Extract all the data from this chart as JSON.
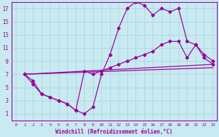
{
  "xlabel": "Windchill (Refroidissement éolien,°C)",
  "background_color": "#c8eaf0",
  "grid_color": "#b0d8e0",
  "line_color": "#990099",
  "xlim": [
    -0.5,
    23.5
  ],
  "ylim": [
    0,
    18
  ],
  "xticks": [
    0,
    1,
    2,
    3,
    4,
    5,
    6,
    7,
    8,
    9,
    10,
    11,
    12,
    13,
    14,
    15,
    16,
    17,
    18,
    19,
    20,
    21,
    22,
    23
  ],
  "yticks": [
    1,
    3,
    5,
    7,
    9,
    11,
    13,
    15,
    17
  ],
  "line1_x": [
    1,
    2,
    3,
    4,
    5,
    6,
    7,
    8,
    9,
    10,
    11,
    12,
    13,
    14,
    15,
    16,
    17,
    18,
    19,
    20,
    21,
    22,
    23
  ],
  "line1_y": [
    7,
    6,
    4,
    3.5,
    3,
    2.5,
    1.5,
    1,
    2,
    7,
    10,
    14,
    17,
    18,
    17.5,
    16,
    17,
    16.5,
    17,
    12,
    11.5,
    10,
    9
  ],
  "line2_x": [
    1,
    2,
    3,
    4,
    5,
    6,
    7,
    8,
    9,
    10,
    11,
    12,
    13,
    14,
    15,
    16,
    17,
    18,
    19,
    20,
    21,
    22,
    23
  ],
  "line2_y": [
    7,
    5.5,
    4,
    3.5,
    3,
    2.5,
    1.5,
    7.5,
    7,
    7.5,
    8,
    8.5,
    9,
    9.5,
    10,
    10.5,
    11.5,
    12,
    12,
    9.5,
    11.5,
    9.5,
    8.5
  ],
  "line3_x": [
    1,
    23
  ],
  "line3_y": [
    7,
    8
  ],
  "line4_x": [
    1,
    23
  ],
  "line4_y": [
    7,
    8.5
  ]
}
